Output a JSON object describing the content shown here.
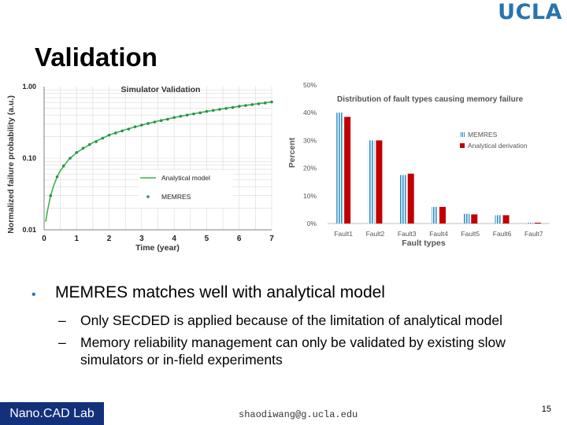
{
  "header": {
    "logo_text": "UCLA",
    "title": "Validation"
  },
  "chart_data": [
    {
      "type": "line",
      "title": "Simulator Validation",
      "xlabel": "Time (year)",
      "ylabel": "Normalized failure probability (a.u.)",
      "yscale": "log",
      "xlim": [
        0,
        7
      ],
      "ylim": [
        0.01,
        1.0
      ],
      "xticks": [
        "0",
        "1",
        "2",
        "3",
        "4",
        "5",
        "6",
        "7"
      ],
      "yticks": [
        "1.00",
        "0.10",
        "0.01"
      ],
      "grid": true,
      "legend_position": "bottom-right",
      "series": [
        {
          "name": "Analytical model",
          "style": "line",
          "color": "#3cb34a",
          "x": [
            0.05,
            0.1,
            0.2,
            0.3,
            0.4,
            0.5,
            0.75,
            1,
            1.5,
            2,
            2.5,
            3,
            3.5,
            4,
            4.5,
            5,
            5.5,
            6,
            6.5,
            7
          ],
          "y": [
            0.013,
            0.018,
            0.03,
            0.042,
            0.055,
            0.067,
            0.095,
            0.12,
            0.165,
            0.21,
            0.25,
            0.29,
            0.33,
            0.37,
            0.41,
            0.45,
            0.49,
            0.53,
            0.57,
            0.61
          ]
        },
        {
          "name": "MEMRES",
          "style": "markers",
          "color": "#2e8b57",
          "x": [
            0.2,
            0.4,
            0.6,
            0.8,
            1,
            1.2,
            1.4,
            1.6,
            1.8,
            2,
            2.2,
            2.4,
            2.6,
            2.8,
            3,
            3.2,
            3.4,
            3.6,
            3.8,
            4,
            4.2,
            4.4,
            4.6,
            4.8,
            5,
            5.2,
            5.4,
            5.6,
            5.8,
            6,
            6.2,
            6.4,
            6.6,
            6.8,
            7
          ],
          "y": [
            0.03,
            0.055,
            0.078,
            0.1,
            0.12,
            0.138,
            0.155,
            0.17,
            0.19,
            0.21,
            0.225,
            0.24,
            0.255,
            0.275,
            0.29,
            0.305,
            0.32,
            0.335,
            0.35,
            0.37,
            0.385,
            0.4,
            0.415,
            0.43,
            0.45,
            0.465,
            0.48,
            0.495,
            0.51,
            0.53,
            0.545,
            0.56,
            0.575,
            0.59,
            0.61
          ]
        }
      ]
    },
    {
      "type": "bar",
      "title": "Distribution of fault types causing memory failure",
      "xlabel": "Fault types",
      "ylabel": "Percent",
      "ylim": [
        0,
        50
      ],
      "yticks": [
        "0%",
        "10%",
        "20%",
        "30%",
        "40%",
        "50%"
      ],
      "grid": false,
      "legend_position": "right",
      "categories": [
        "Fault1",
        "Fault2",
        "Fault3",
        "Fault4",
        "Fault5",
        "Fault6",
        "Fault7"
      ],
      "series": [
        {
          "name": "MEMRES",
          "color": "#2f8fc4",
          "pattern": "striped",
          "values": [
            40,
            30,
            17.5,
            6,
            3.5,
            3,
            0.3
          ]
        },
        {
          "name": "Analytical derivation",
          "color": "#c00000",
          "values": [
            38.5,
            30,
            18,
            6,
            3.3,
            3,
            0.3
          ]
        }
      ]
    }
  ],
  "bullets": {
    "main": "MEMRES matches well with analytical model",
    "sub1": "Only SECDED is applied because of the limitation of analytical model",
    "sub2": "Memory reliability management can only be validated by existing slow simulators or in-field experiments"
  },
  "footer": {
    "lab": "Nano.CAD Lab",
    "email": "shaodiwang@g.ucla.edu",
    "page": "15"
  }
}
